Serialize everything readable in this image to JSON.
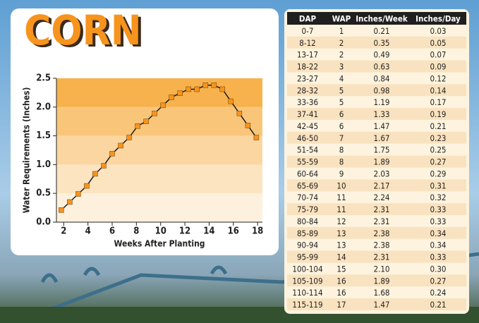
{
  "heading": "CORN",
  "chart_data": {
    "type": "line",
    "x": [
      1.8,
      2.5,
      3.2,
      3.9,
      4.6,
      5.3,
      6.0,
      6.7,
      7.4,
      8.1,
      8.8,
      9.5,
      10.2,
      10.9,
      11.6,
      12.3,
      13.0,
      13.7,
      14.4,
      15.1,
      15.8,
      16.5,
      17.2,
      17.9
    ],
    "series": [
      {
        "name": "Inches/Week",
        "color": "#1a1a1a",
        "values": [
          0.21,
          0.35,
          0.49,
          0.63,
          0.84,
          0.98,
          1.19,
          1.33,
          1.47,
          1.67,
          1.75,
          1.89,
          2.03,
          2.17,
          2.24,
          2.31,
          2.31,
          2.38,
          2.38,
          2.31,
          2.1,
          1.89,
          1.68,
          1.47
        ]
      }
    ],
    "marker_color": "#f7941d",
    "xlabel": "Weeks After Planting",
    "ylabel": "Water Requirements (Inches)",
    "xlim": [
      1.4,
      18.4
    ],
    "xticks": [
      2,
      4,
      6,
      8,
      10,
      12,
      14,
      16,
      18
    ],
    "ylim": [
      0,
      2.5
    ],
    "yticks": [
      {
        "value": 0,
        "label": "0.0"
      },
      0.5,
      {
        "value": 1,
        "label": "1.0"
      },
      1.5,
      {
        "value": 2,
        "label": "2.0"
      },
      2.5
    ]
  },
  "table": {
    "header": [
      "DAP",
      "WAP",
      "Inches/Week",
      "Inches/Day"
    ],
    "rows": [
      [
        "0-7",
        "1",
        "0.21",
        "0.03"
      ],
      [
        "8-12",
        "2",
        "0.35",
        "0.05"
      ],
      [
        "13-17",
        "2",
        "0.49",
        "0.07"
      ],
      [
        "18-22",
        "3",
        "0.63",
        "0.09"
      ],
      [
        "23-27",
        "4",
        "0.84",
        "0.12"
      ],
      [
        "28-32",
        "5",
        "0.98",
        "0.14"
      ],
      [
        "33-36",
        "5",
        "1.19",
        "0.17"
      ],
      [
        "37-41",
        "6",
        "1.33",
        "0.19"
      ],
      [
        "42-45",
        "6",
        "1.47",
        "0.21"
      ],
      [
        "46-50",
        "7",
        "1.67",
        "0.23"
      ],
      [
        "51-54",
        "8",
        "1.75",
        "0.25"
      ],
      [
        "55-59",
        "8",
        "1.89",
        "0.27"
      ],
      [
        "60-64",
        "9",
        "2.03",
        "0.29"
      ],
      [
        "65-69",
        "10",
        "2.17",
        "0.31"
      ],
      [
        "70-74",
        "11",
        "2.24",
        "0.32"
      ],
      [
        "75-79",
        "11",
        "2.31",
        "0.33"
      ],
      [
        "80-84",
        "12",
        "2.31",
        "0.33"
      ],
      [
        "85-89",
        "13",
        "2.38",
        "0.34"
      ],
      [
        "90-94",
        "13",
        "2.38",
        "0.34"
      ],
      [
        "95-99",
        "14",
        "2.31",
        "0.33"
      ],
      [
        "100-104",
        "15",
        "2.10",
        "0.30"
      ],
      [
        "105-109",
        "16",
        "1.89",
        "0.27"
      ],
      [
        "110-114",
        "16",
        "1.68",
        "0.24"
      ],
      [
        "115-119",
        "17",
        "1.47",
        "0.21"
      ]
    ]
  }
}
